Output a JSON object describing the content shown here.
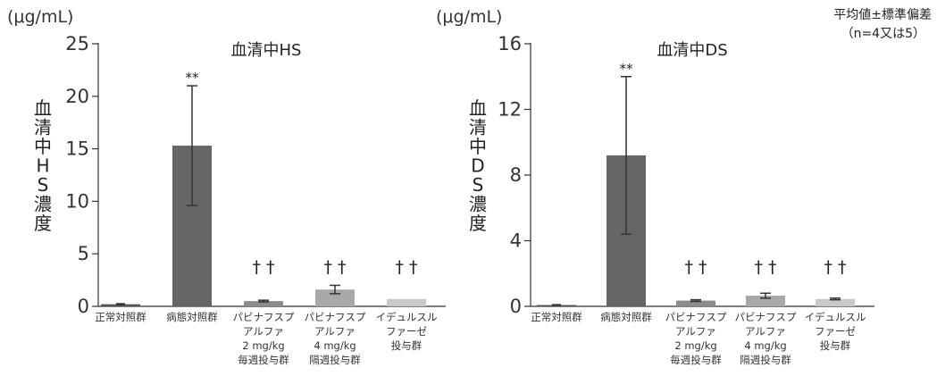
{
  "note": [
    "平均値±標準偏差",
    "（n=4又は5）"
  ],
  "chart_data": [
    {
      "type": "bar",
      "title": "血清中HS",
      "ylabel": "血清中HS濃度",
      "unit": "(μg/mL)",
      "ylim": [
        0,
        25
      ],
      "yticks": [
        0,
        5,
        10,
        15,
        20,
        25
      ],
      "categories": [
        [
          "正常対照群"
        ],
        [
          "病態対照群"
        ],
        [
          "パビナフスプ",
          "アルファ",
          "2 mg/kg",
          "毎週投与群"
        ],
        [
          "パビナフスプ",
          "アルファ",
          "4 mg/kg",
          "隔週投与群"
        ],
        [
          "イデュルスル",
          "ファーゼ",
          "投与群"
        ]
      ],
      "values": [
        0.2,
        15.3,
        0.5,
        1.6,
        0.7
      ],
      "errors": [
        0.05,
        5.7,
        0.08,
        0.4,
        0.0
      ],
      "colors": [
        "#555555",
        "#666666",
        "#8c8c8c",
        "#a8a8a8",
        "#c9c9c9"
      ],
      "significance": [
        "",
        "**",
        "† †",
        "† †",
        "† †"
      ]
    },
    {
      "type": "bar",
      "title": "血清中DS",
      "ylabel": "血清中DS濃度",
      "unit": "(μg/mL)",
      "ylim": [
        0,
        16
      ],
      "yticks": [
        0,
        4,
        8,
        12,
        16
      ],
      "categories": [
        [
          "正常対照群"
        ],
        [
          "病態対照群"
        ],
        [
          "パビナフスプ",
          "アルファ",
          "2 mg/kg",
          "毎週投与群"
        ],
        [
          "パビナフスプ",
          "アルファ",
          "4 mg/kg",
          "隔週投与群"
        ],
        [
          "イデュルスル",
          "ファーゼ",
          "投与群"
        ]
      ],
      "values": [
        0.08,
        9.2,
        0.35,
        0.65,
        0.45
      ],
      "errors": [
        0.02,
        4.8,
        0.05,
        0.15,
        0.05
      ],
      "colors": [
        "#555555",
        "#666666",
        "#8c8c8c",
        "#a8a8a8",
        "#c9c9c9"
      ],
      "significance": [
        "",
        "**",
        "† †",
        "† †",
        "† †"
      ]
    }
  ]
}
